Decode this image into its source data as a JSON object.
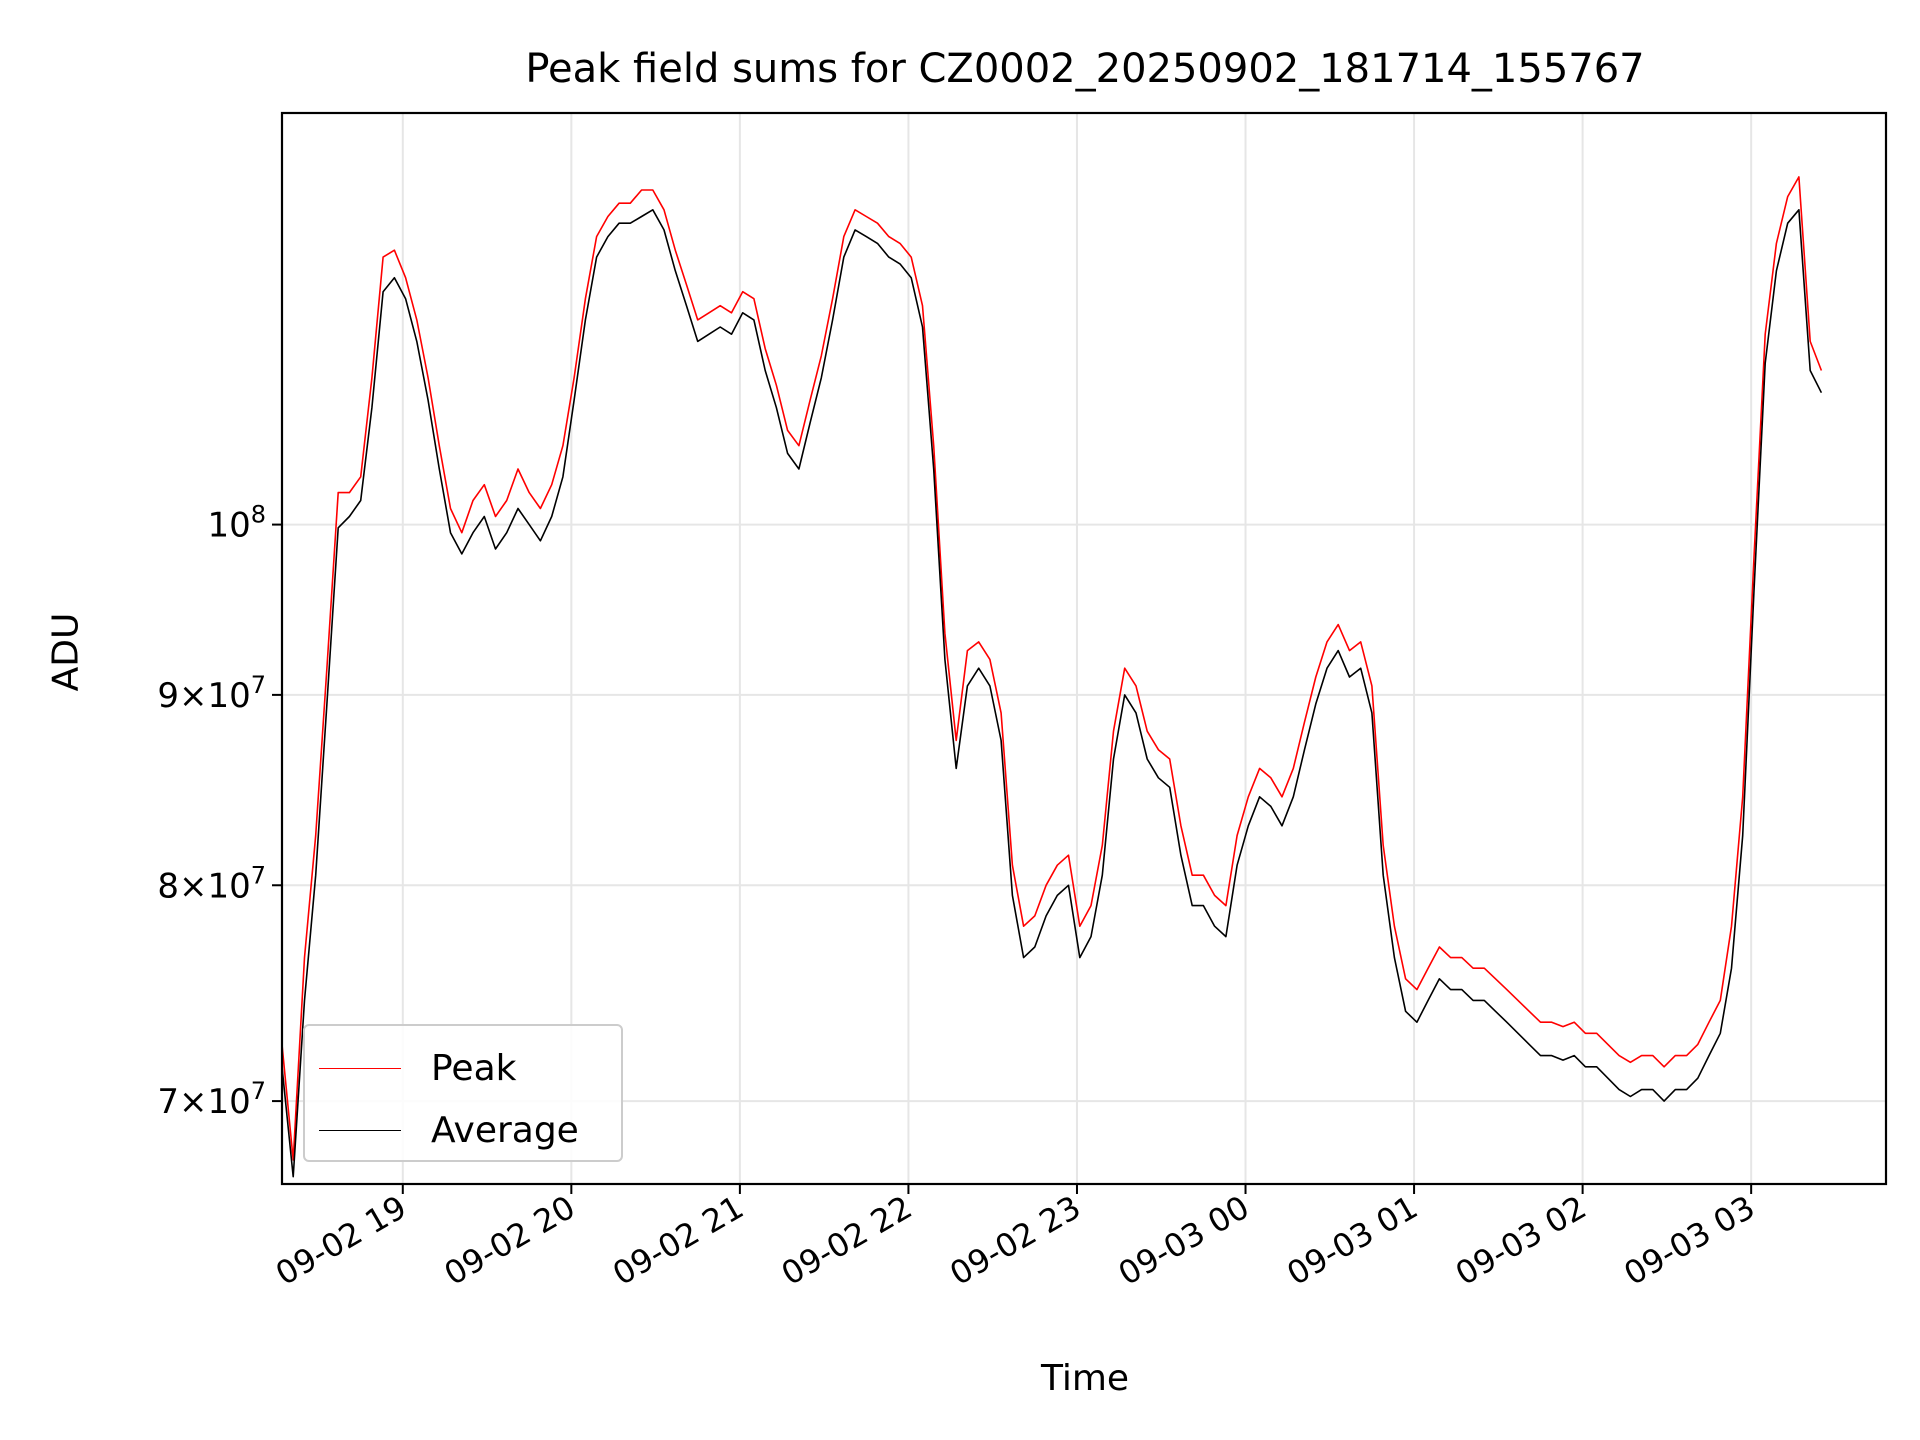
{
  "chart_data": {
    "type": "line",
    "title": "Peak field sums for CZ0002_20250902_181714_155767",
    "xlabel": "Time",
    "ylabel": "ADU",
    "x_ticks": [
      "09-02 19",
      "09-02 20",
      "09-02 21",
      "09-02 22",
      "09-02 23",
      "09-03 00",
      "09-03 01",
      "09-03 02",
      "09-03 03"
    ],
    "y_ticks": [
      {
        "value": 70000000,
        "base": "7",
        "exp": "7"
      },
      {
        "value": 80000000,
        "base": "8",
        "exp": "7"
      },
      {
        "value": 90000000,
        "base": "9",
        "exp": "7"
      },
      {
        "value": 100000000,
        "base": "",
        "exp": "8"
      }
    ],
    "xlim": [
      "2025-09-02 18:17",
      "2025-09-03 03:48"
    ],
    "ylim": [
      66500000,
      129000000
    ],
    "y_scale": "log",
    "grid": true,
    "legend_position": "lower-left",
    "series": [
      {
        "name": "Peak",
        "color": "#ff0000"
      },
      {
        "name": "Average",
        "color": "#000000"
      }
    ],
    "x": [
      "18:17",
      "18:21",
      "18:25",
      "18:29",
      "18:33",
      "18:37",
      "18:41",
      "18:45",
      "18:49",
      "18:53",
      "18:57",
      "19:01",
      "19:05",
      "19:09",
      "19:13",
      "19:17",
      "19:21",
      "19:25",
      "19:29",
      "19:33",
      "19:37",
      "19:41",
      "19:45",
      "19:49",
      "19:53",
      "19:57",
      "20:01",
      "20:05",
      "20:09",
      "20:13",
      "20:17",
      "20:21",
      "20:25",
      "20:29",
      "20:33",
      "20:37",
      "20:41",
      "20:45",
      "20:49",
      "20:53",
      "20:57",
      "21:01",
      "21:05",
      "21:09",
      "21:13",
      "21:17",
      "21:21",
      "21:25",
      "21:29",
      "21:33",
      "21:37",
      "21:41",
      "21:45",
      "21:49",
      "21:53",
      "21:57",
      "22:01",
      "22:05",
      "22:09",
      "22:13",
      "22:17",
      "22:21",
      "22:25",
      "22:29",
      "22:33",
      "22:37",
      "22:41",
      "22:45",
      "22:49",
      "22:53",
      "22:57",
      "23:01",
      "23:05",
      "23:09",
      "23:13",
      "23:17",
      "23:21",
      "23:25",
      "23:29",
      "23:33",
      "23:37",
      "23:41",
      "23:45",
      "23:49",
      "23:53",
      "23:57",
      "00:01",
      "00:05",
      "00:09",
      "00:13",
      "00:17",
      "00:21",
      "00:25",
      "00:29",
      "00:33",
      "00:37",
      "00:41",
      "00:45",
      "00:49",
      "00:53",
      "00:57",
      "01:01",
      "01:05",
      "01:09",
      "01:13",
      "01:17",
      "01:21",
      "01:25",
      "01:29",
      "01:33",
      "01:37",
      "01:41",
      "01:45",
      "01:49",
      "01:53",
      "01:57",
      "02:01",
      "02:05",
      "02:09",
      "02:13",
      "02:17",
      "02:21",
      "02:25",
      "02:29",
      "02:33",
      "02:37",
      "02:41",
      "02:45",
      "02:49",
      "02:53",
      "02:57",
      "03:01",
      "03:05",
      "03:09",
      "03:13",
      "03:17",
      "03:21",
      "03:25",
      "03:29",
      "03:33",
      "03:37",
      "03:41",
      "03:45",
      "03:48"
    ],
    "average": [
      71.5,
      66.8,
      74.5,
      80.5,
      89.5,
      99.8,
      100.5,
      101.5,
      107.5,
      115.5,
      116.5,
      115.0,
      112.0,
      108.0,
      103.5,
      99.5,
      98.2,
      99.5,
      100.5,
      98.5,
      99.5,
      101.0,
      100.0,
      99.0,
      100.5,
      103.0,
      108.0,
      113.5,
      118.0,
      119.5,
      120.5,
      120.5,
      121.0,
      121.5,
      120.0,
      117.0,
      114.5,
      112.0,
      112.5,
      113.0,
      112.5,
      114.0,
      113.5,
      110.0,
      107.5,
      104.5,
      103.5,
      106.5,
      109.5,
      113.5,
      118.0,
      120.0,
      119.5,
      119.0,
      118.0,
      117.5,
      116.5,
      113.0,
      103.5,
      92.0,
      86.0,
      90.5,
      91.5,
      90.5,
      87.5,
      79.5,
      76.5,
      77.0,
      78.5,
      79.5,
      80.0,
      76.5,
      77.5,
      80.5,
      86.5,
      90.0,
      89.0,
      86.5,
      85.5,
      85.0,
      81.5,
      79.0,
      79.0,
      78.0,
      77.5,
      81.0,
      83.0,
      84.5,
      84.0,
      83.0,
      84.5,
      87.0,
      89.5,
      91.5,
      92.5,
      91.0,
      91.5,
      89.0,
      80.5,
      76.5,
      74.0,
      73.5,
      74.5,
      75.5,
      75.0,
      75.0,
      74.5,
      74.5,
      74.0,
      73.5,
      73.0,
      72.5,
      72.0,
      72.0,
      71.8,
      72.0,
      71.5,
      71.5,
      71.0,
      70.5,
      70.2,
      70.5,
      70.5,
      70.0,
      70.5,
      70.5,
      71.0,
      72.0,
      73.0,
      76.0,
      82.5,
      96.0,
      110.5,
      117.0,
      120.5,
      121.5,
      110.0,
      108.5
    ],
    "peak": [
      72.5,
      67.5,
      76.5,
      82.5,
      91.5,
      102.0,
      102.0,
      103.0,
      109.5,
      118.0,
      118.5,
      116.5,
      113.5,
      109.5,
      105.0,
      101.0,
      99.5,
      101.5,
      102.5,
      100.5,
      101.5,
      103.5,
      102.0,
      101.0,
      102.5,
      105.0,
      109.5,
      115.0,
      119.5,
      121.0,
      122.0,
      122.0,
      123.0,
      123.0,
      121.5,
      118.5,
      116.0,
      113.5,
      114.0,
      114.5,
      114.0,
      115.5,
      115.0,
      111.5,
      109.0,
      106.0,
      105.0,
      108.0,
      111.0,
      115.0,
      119.5,
      121.5,
      121.0,
      120.5,
      119.5,
      119.0,
      118.0,
      114.5,
      105.0,
      93.5,
      87.5,
      92.5,
      93.0,
      92.0,
      89.0,
      81.0,
      78.0,
      78.5,
      80.0,
      81.0,
      81.5,
      78.0,
      79.0,
      82.0,
      88.0,
      91.5,
      90.5,
      88.0,
      87.0,
      86.5,
      83.0,
      80.5,
      80.5,
      79.5,
      79.0,
      82.5,
      84.5,
      86.0,
      85.5,
      84.5,
      86.0,
      88.5,
      91.0,
      93.0,
      94.0,
      92.5,
      93.0,
      90.5,
      82.0,
      78.0,
      75.5,
      75.0,
      76.0,
      77.0,
      76.5,
      76.5,
      76.0,
      76.0,
      75.5,
      75.0,
      74.5,
      74.0,
      73.5,
      73.5,
      73.3,
      73.5,
      73.0,
      73.0,
      72.5,
      72.0,
      71.7,
      72.0,
      72.0,
      71.5,
      72.0,
      72.0,
      72.5,
      73.5,
      74.5,
      78.0,
      84.5,
      98.0,
      112.5,
      119.0,
      122.5,
      124.0,
      112.0,
      110.0
    ],
    "y_unit_note": "values in millions of ADU"
  }
}
